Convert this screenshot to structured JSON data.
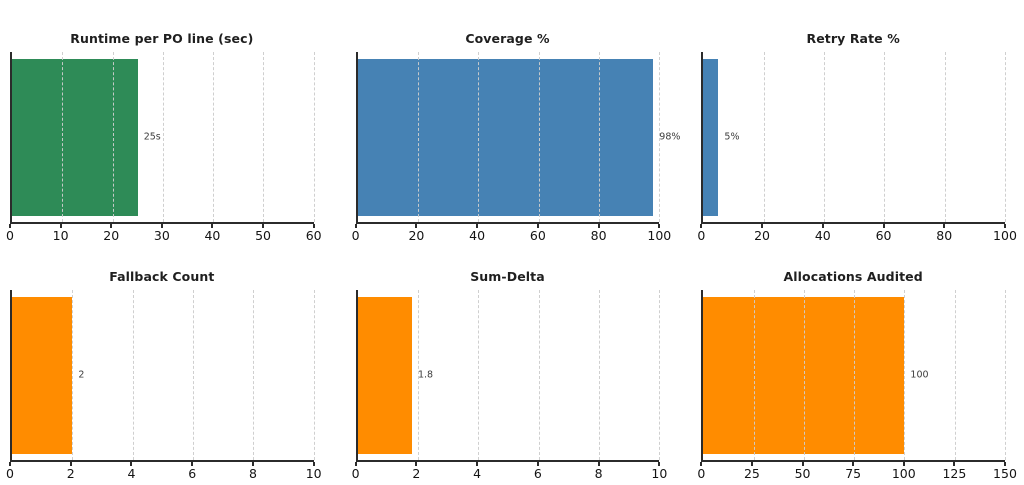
{
  "page": {
    "background": "#ffffff"
  },
  "colors": {
    "grid": "#cccccc",
    "spine": "#2b2b2b",
    "title_text": "#1f1f1f",
    "tick_label_text": "#141414",
    "value_label_text": "#3d3d3d",
    "green_bar": "#2e8b57",
    "blue_bar": "#4682b4",
    "orange_bar": "#ff8c00"
  },
  "chart_data": [
    {
      "type": "bar",
      "orientation": "horizontal",
      "title": "Runtime per PO line (sec)",
      "value": 25,
      "value_label": "25s",
      "xlim": [
        0,
        60
      ],
      "ticks": [
        0,
        10,
        20,
        30,
        40,
        50,
        60
      ],
      "bar_color": "#2e8b57",
      "grid": "on",
      "legend": "none"
    },
    {
      "type": "bar",
      "orientation": "horizontal",
      "title": "Coverage %",
      "value": 98,
      "value_label": "98%",
      "xlim": [
        0,
        100
      ],
      "ticks": [
        0,
        20,
        40,
        60,
        80,
        100
      ],
      "bar_color": "#4682b4",
      "grid": "on",
      "legend": "none"
    },
    {
      "type": "bar",
      "orientation": "horizontal",
      "title": "Retry Rate %",
      "value": 5,
      "value_label": "5%",
      "xlim": [
        0,
        100
      ],
      "ticks": [
        0,
        20,
        40,
        60,
        80,
        100
      ],
      "bar_color": "#4682b4",
      "grid": "on",
      "legend": "none"
    },
    {
      "type": "bar",
      "orientation": "horizontal",
      "title": "Fallback Count",
      "value": 2,
      "value_label": "2",
      "xlim": [
        0,
        10
      ],
      "ticks": [
        0,
        2,
        4,
        6,
        8,
        10
      ],
      "bar_color": "#ff8c00",
      "grid": "on",
      "legend": "none"
    },
    {
      "type": "bar",
      "orientation": "horizontal",
      "title": "Sum-Delta",
      "value": 1.8,
      "value_label": "1.8",
      "xlim": [
        0,
        10
      ],
      "ticks": [
        0,
        2,
        4,
        6,
        8,
        10
      ],
      "bar_color": "#ff8c00",
      "grid": "on",
      "legend": "none"
    },
    {
      "type": "bar",
      "orientation": "horizontal",
      "title": "Allocations Audited",
      "value": 100,
      "value_label": "100",
      "xlim": [
        0,
        150
      ],
      "ticks": [
        0,
        25,
        50,
        75,
        100,
        125,
        150
      ],
      "bar_color": "#ff8c00",
      "grid": "on",
      "legend": "none"
    }
  ]
}
